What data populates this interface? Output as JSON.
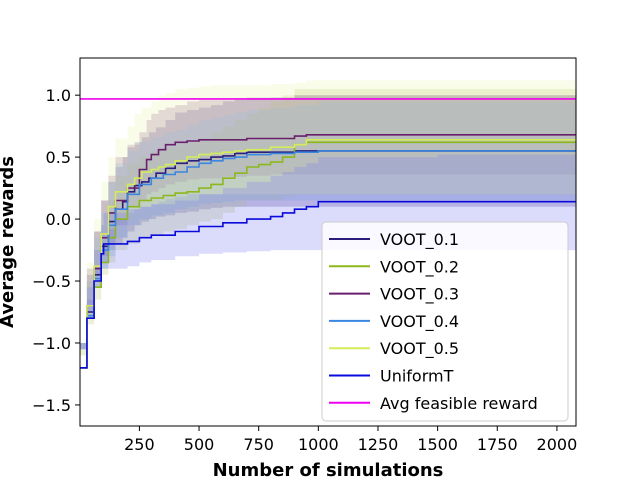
{
  "chart_data": {
    "type": "line",
    "title": "",
    "xlabel": "Number of simulations",
    "ylabel": "Average rewards",
    "xlim": [
      1,
      2080
    ],
    "ylim": [
      -1.67,
      1.3
    ],
    "xticks": [
      250,
      500,
      750,
      1000,
      1250,
      1500,
      1750,
      2000
    ],
    "xtick_labels": [
      "250",
      "500",
      "750",
      "1000",
      "1250",
      "1500",
      "1750",
      "2000"
    ],
    "yticks": [
      -1.5,
      -1.0,
      -0.5,
      0.0,
      0.5,
      1.0
    ],
    "ytick_labels": [
      "−1.5",
      "−1.0",
      "−0.5",
      "0.0",
      "0.5",
      "1.0"
    ],
    "grid": false,
    "legend_position": "lower-right",
    "series": [
      {
        "name": "VOOT_0.1",
        "color": "#2b1d7a",
        "band_color": "#4b3f8f",
        "x": [
          1,
          30,
          60,
          90,
          120,
          150,
          180,
          200,
          230,
          260,
          290,
          320,
          360,
          400,
          450,
          500,
          550,
          600,
          650,
          700,
          900,
          1000,
          1500,
          2080
        ],
        "y": [
          -1.2,
          -0.75,
          -0.45,
          -0.22,
          -0.02,
          0.08,
          0.14,
          0.22,
          0.27,
          0.3,
          0.33,
          0.37,
          0.41,
          0.45,
          0.47,
          0.48,
          0.5,
          0.51,
          0.53,
          0.54,
          0.55,
          0.55,
          0.55,
          0.55
        ],
        "lower": [
          -1.4,
          -1.05,
          -0.8,
          -0.55,
          -0.35,
          -0.25,
          -0.2,
          -0.15,
          -0.1,
          -0.05,
          -0.02,
          0.0,
          0.02,
          0.03,
          0.05,
          0.06,
          0.08,
          0.09,
          0.1,
          0.1,
          0.1,
          0.1,
          0.1,
          0.1
        ],
        "upper": [
          -1.0,
          -0.45,
          -0.1,
          0.15,
          0.3,
          0.42,
          0.5,
          0.58,
          0.62,
          0.66,
          0.7,
          0.74,
          0.8,
          0.86,
          0.88,
          0.9,
          0.92,
          0.95,
          0.97,
          0.98,
          1.0,
          1.0,
          1.0,
          1.0
        ]
      },
      {
        "name": "VOOT_0.2",
        "color": "#8cb81e",
        "band_color": "#b7c96a",
        "x": [
          1,
          30,
          60,
          90,
          120,
          150,
          200,
          250,
          300,
          350,
          400,
          450,
          500,
          550,
          600,
          650,
          700,
          750,
          800,
          850,
          900,
          950,
          1000,
          1500,
          2080
        ],
        "y": [
          -1.2,
          -0.8,
          -0.55,
          -0.35,
          -0.15,
          0.0,
          0.1,
          0.15,
          0.17,
          0.19,
          0.21,
          0.22,
          0.25,
          0.28,
          0.33,
          0.37,
          0.42,
          0.44,
          0.46,
          0.5,
          0.6,
          0.62,
          0.62,
          0.62,
          0.62
        ],
        "lower": [
          -1.4,
          -1.1,
          -0.85,
          -0.65,
          -0.45,
          -0.35,
          -0.25,
          -0.2,
          -0.15,
          -0.13,
          -0.1,
          -0.08,
          -0.05,
          -0.02,
          0.0,
          0.05,
          0.1,
          0.15,
          0.15,
          0.15,
          0.18,
          0.2,
          0.2,
          0.2,
          0.2
        ],
        "upper": [
          -1.0,
          -0.5,
          -0.25,
          -0.05,
          0.15,
          0.35,
          0.45,
          0.5,
          0.55,
          0.58,
          0.6,
          0.62,
          0.65,
          0.7,
          0.75,
          0.8,
          0.85,
          0.9,
          0.95,
          1.0,
          1.05,
          1.05,
          1.05,
          1.05,
          1.05
        ]
      },
      {
        "name": "VOOT_0.3",
        "color": "#6a1f6d",
        "band_color": "#8c5a8e",
        "x": [
          1,
          30,
          60,
          90,
          120,
          150,
          200,
          250,
          280,
          300,
          330,
          360,
          400,
          450,
          500,
          600,
          700,
          800,
          900,
          950,
          1000,
          1500,
          2080
        ],
        "y": [
          -1.2,
          -0.7,
          -0.4,
          -0.15,
          0.05,
          0.15,
          0.25,
          0.4,
          0.48,
          0.52,
          0.56,
          0.6,
          0.62,
          0.63,
          0.64,
          0.64,
          0.65,
          0.65,
          0.67,
          0.68,
          0.68,
          0.68,
          0.68
        ],
        "lower": [
          -1.4,
          -1.0,
          -0.7,
          -0.45,
          -0.3,
          -0.2,
          -0.05,
          0.1,
          0.15,
          0.2,
          0.22,
          0.25,
          0.28,
          0.3,
          0.32,
          0.33,
          0.34,
          0.35,
          0.36,
          0.36,
          0.36,
          0.36,
          0.36
        ],
        "upper": [
          -1.0,
          -0.4,
          -0.1,
          0.15,
          0.35,
          0.5,
          0.6,
          0.7,
          0.8,
          0.85,
          0.88,
          0.9,
          0.92,
          0.95,
          0.96,
          0.96,
          0.97,
          0.98,
          1.0,
          1.0,
          1.0,
          1.0,
          1.0
        ]
      },
      {
        "name": "VOOT_0.4",
        "color": "#3a86e0",
        "band_color": "#7eaee6",
        "x": [
          1,
          30,
          60,
          90,
          120,
          150,
          200,
          250,
          300,
          350,
          400,
          450,
          500,
          550,
          600,
          650,
          700,
          800,
          900,
          1000,
          1500,
          2080
        ],
        "y": [
          -1.2,
          -0.78,
          -0.48,
          -0.25,
          -0.05,
          0.08,
          0.2,
          0.28,
          0.33,
          0.36,
          0.38,
          0.42,
          0.45,
          0.47,
          0.49,
          0.5,
          0.52,
          0.53,
          0.54,
          0.55,
          0.55,
          0.55
        ],
        "lower": [
          -1.4,
          -1.05,
          -0.8,
          -0.55,
          -0.4,
          -0.3,
          -0.15,
          -0.05,
          0.0,
          0.03,
          0.05,
          0.08,
          0.1,
          0.12,
          0.13,
          0.14,
          0.15,
          0.15,
          0.15,
          0.15,
          0.15,
          0.15
        ],
        "upper": [
          -1.0,
          -0.5,
          -0.15,
          0.05,
          0.3,
          0.45,
          0.55,
          0.62,
          0.66,
          0.7,
          0.72,
          0.76,
          0.8,
          0.82,
          0.84,
          0.86,
          0.88,
          0.9,
          0.92,
          0.95,
          0.95,
          0.95
        ]
      },
      {
        "name": "VOOT_0.5",
        "color": "#d4ec5a",
        "band_color": "#eef5b4",
        "x": [
          1,
          30,
          60,
          90,
          120,
          150,
          200,
          230,
          260,
          300,
          330,
          360,
          400,
          450,
          500,
          550,
          600,
          650,
          700,
          800,
          900,
          950,
          1000,
          1500,
          2080
        ],
        "y": [
          -1.2,
          -0.7,
          -0.38,
          -0.12,
          0.1,
          0.22,
          0.28,
          0.33,
          0.38,
          0.4,
          0.42,
          0.44,
          0.47,
          0.5,
          0.52,
          0.53,
          0.54,
          0.55,
          0.56,
          0.58,
          0.6,
          0.64,
          0.64,
          0.64,
          0.64
        ],
        "lower": [
          -1.4,
          -1.0,
          -0.65,
          -0.4,
          -0.2,
          -0.08,
          0.0,
          0.05,
          0.08,
          0.1,
          0.12,
          0.14,
          0.16,
          0.18,
          0.2,
          0.2,
          0.2,
          0.2,
          0.2,
          0.2,
          0.2,
          0.2,
          0.2,
          0.2,
          0.2
        ],
        "upper": [
          -1.0,
          -0.35,
          0.0,
          0.3,
          0.5,
          0.65,
          0.75,
          0.85,
          0.9,
          0.95,
          1.0,
          1.02,
          1.05,
          1.06,
          1.07,
          1.08,
          1.08,
          1.08,
          1.08,
          1.09,
          1.1,
          1.12,
          1.12,
          1.12,
          1.12
        ]
      },
      {
        "name": "UniformT",
        "color": "#0a0adc",
        "band_color": "#7f7ff5",
        "x": [
          1,
          30,
          60,
          90,
          100,
          150,
          200,
          250,
          300,
          400,
          500,
          600,
          700,
          800,
          850,
          900,
          950,
          1000,
          1500,
          2080
        ],
        "y": [
          -1.2,
          -0.8,
          -0.5,
          -0.28,
          -0.2,
          -0.2,
          -0.18,
          -0.15,
          -0.13,
          -0.1,
          -0.06,
          -0.03,
          0.0,
          0.02,
          0.05,
          0.08,
          0.1,
          0.14,
          0.14,
          0.14
        ],
        "lower": [
          -1.4,
          -1.05,
          -0.75,
          -0.5,
          -0.4,
          -0.4,
          -0.4,
          -0.38,
          -0.35,
          -0.33,
          -0.3,
          -0.28,
          -0.27,
          -0.26,
          -0.25,
          -0.25,
          -0.25,
          -0.25,
          -0.25,
          -0.25
        ],
        "upper": [
          -1.0,
          -0.55,
          -0.25,
          -0.05,
          0.05,
          0.05,
          0.08,
          0.1,
          0.12,
          0.15,
          0.2,
          0.25,
          0.3,
          0.35,
          0.38,
          0.42,
          0.45,
          0.5,
          0.52,
          0.52
        ]
      },
      {
        "name": "Avg feasible reward",
        "color": "#ee00ee",
        "x": [
          1,
          2080
        ],
        "y": [
          0.97,
          0.97
        ]
      }
    ]
  }
}
